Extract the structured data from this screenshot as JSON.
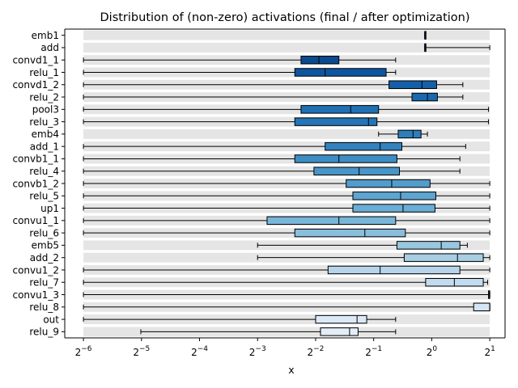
{
  "chart_data": {
    "type": "boxplot",
    "title": "Distribution of (non-zero) activations (final / after optimization)",
    "xlabel": "x",
    "ylabel": "",
    "xscale": "log2",
    "xlim": [
      0.0125,
      2.4
    ],
    "xticks": [
      {
        "value": 0.015625,
        "base": "2",
        "exp": "−6"
      },
      {
        "value": 0.03125,
        "base": "2",
        "exp": "−5"
      },
      {
        "value": 0.0625,
        "base": "2",
        "exp": "−4"
      },
      {
        "value": 0.125,
        "base": "2",
        "exp": "−3"
      },
      {
        "value": 0.25,
        "base": "2",
        "exp": "−2"
      },
      {
        "value": 0.5,
        "base": "2",
        "exp": "−1"
      },
      {
        "value": 1,
        "base": "2",
        "exp": "0"
      },
      {
        "value": 2,
        "base": "2",
        "exp": "1"
      }
    ],
    "range_band": [
      0.015625,
      2
    ],
    "grid": false,
    "colormap": "Blues",
    "band_color": "#e5e5e5",
    "boxes": [
      {
        "label": "emb1",
        "whislo": 0.92,
        "q1": 0.92,
        "med": 0.92,
        "q3": 0.925,
        "whishi": 0.925,
        "color": "#08306b"
      },
      {
        "label": "add",
        "whislo": 0.92,
        "q1": 0.92,
        "med": 0.92,
        "q3": 0.92,
        "whishi": 2.0,
        "color": "#08306b"
      },
      {
        "label": "convd1_1",
        "whislo": 0.015625,
        "q1": 0.21,
        "med": 0.26,
        "q3": 0.33,
        "whishi": 0.65,
        "color": "#0b4a8f"
      },
      {
        "label": "relu_1",
        "whislo": 0.015625,
        "q1": 0.195,
        "med": 0.28,
        "q3": 0.58,
        "whishi": 0.65,
        "color": "#0e55a0"
      },
      {
        "label": "convd1_2",
        "whislo": 0.015625,
        "q1": 0.6,
        "med": 0.89,
        "q3": 1.06,
        "whishi": 1.45,
        "color": "#1460a8"
      },
      {
        "label": "relu_2",
        "whislo": 0.015625,
        "q1": 0.79,
        "med": 0.95,
        "q3": 1.07,
        "whishi": 1.45,
        "color": "#1a68ae"
      },
      {
        "label": "pool3",
        "whislo": 0.015625,
        "q1": 0.21,
        "med": 0.38,
        "q3": 0.53,
        "whishi": 1.97,
        "color": "#2070b4"
      },
      {
        "label": "relu_3",
        "whislo": 0.015625,
        "q1": 0.195,
        "med": 0.47,
        "q3": 0.52,
        "whishi": 1.97,
        "color": "#2575b7"
      },
      {
        "label": "emb4",
        "whislo": 0.53,
        "q1": 0.67,
        "med": 0.8,
        "q3": 0.88,
        "whishi": 0.95,
        "color": "#2e7ebc"
      },
      {
        "label": "add_1",
        "whislo": 0.015625,
        "q1": 0.28,
        "med": 0.54,
        "q3": 0.7,
        "whishi": 1.5,
        "color": "#3282be"
      },
      {
        "label": "convb1_1",
        "whislo": 0.015625,
        "q1": 0.195,
        "med": 0.33,
        "q3": 0.66,
        "whishi": 1.4,
        "color": "#3d8dc4"
      },
      {
        "label": "relu_4",
        "whislo": 0.015625,
        "q1": 0.245,
        "med": 0.42,
        "q3": 0.68,
        "whishi": 1.4,
        "color": "#4896c8"
      },
      {
        "label": "convb1_2",
        "whislo": 0.015625,
        "q1": 0.36,
        "med": 0.62,
        "q3": 0.98,
        "whishi": 2.0,
        "color": "#529dcc"
      },
      {
        "label": "relu_5",
        "whislo": 0.015625,
        "q1": 0.39,
        "med": 0.69,
        "q3": 1.05,
        "whishi": 2.0,
        "color": "#5ea5d1"
      },
      {
        "label": "up1",
        "whislo": 0.015625,
        "q1": 0.39,
        "med": 0.71,
        "q3": 1.04,
        "whishi": 2.0,
        "color": "#6aaed6"
      },
      {
        "label": "convu1_1",
        "whislo": 0.015625,
        "q1": 0.14,
        "med": 0.33,
        "q3": 0.65,
        "whishi": 2.0,
        "color": "#7ab6d9"
      },
      {
        "label": "relu_6",
        "whislo": 0.015625,
        "q1": 0.195,
        "med": 0.45,
        "q3": 0.73,
        "whishi": 2.0,
        "color": "#89bedc"
      },
      {
        "label": "emb5",
        "whislo": 0.125,
        "q1": 0.66,
        "med": 1.12,
        "q3": 1.4,
        "whishi": 1.53,
        "color": "#99c7e0"
      },
      {
        "label": "add_2",
        "whislo": 0.125,
        "q1": 0.72,
        "med": 1.36,
        "q3": 1.85,
        "whishi": 2.0,
        "color": "#a8cee4"
      },
      {
        "label": "convu1_2",
        "whislo": 0.015625,
        "q1": 0.29,
        "med": 0.54,
        "q3": 1.4,
        "whishi": 2.0,
        "color": "#b7d4ea"
      },
      {
        "label": "relu_7",
        "whislo": 0.015625,
        "q1": 0.93,
        "med": 1.31,
        "q3": 1.85,
        "whishi": 1.95,
        "color": "#c3dbee"
      },
      {
        "label": "convu1_3",
        "whislo": 0.015625,
        "q1": 1.97,
        "med": 1.99,
        "q3": 2.0,
        "whishi": 2.0,
        "color": "#cee0f2"
      },
      {
        "label": "relu_8",
        "whislo": 0.015625,
        "q1": 1.65,
        "med": 2.0,
        "q3": 2.0,
        "whishi": 2.0,
        "color": "#d5e5f4"
      },
      {
        "label": "out",
        "whislo": 0.015625,
        "q1": 0.25,
        "med": 0.41,
        "q3": 0.46,
        "whishi": 0.65,
        "color": "#dce9f6"
      },
      {
        "label": "relu_9",
        "whislo": 0.031,
        "q1": 0.265,
        "med": 0.375,
        "q3": 0.415,
        "whishi": 0.65,
        "color": "#e3eef8"
      }
    ]
  }
}
